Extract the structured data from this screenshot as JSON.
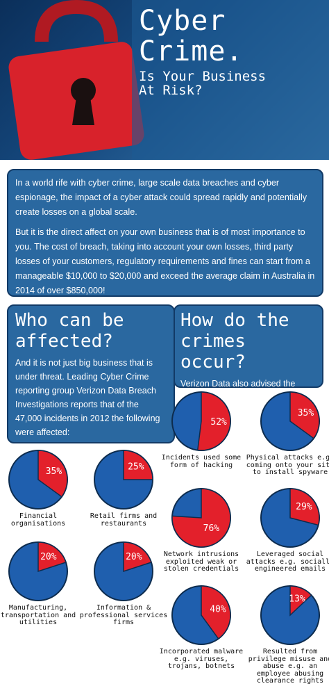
{
  "header": {
    "title": "Cyber Crime.",
    "subtitle": "Is Your Business At Risk?"
  },
  "intro": {
    "paragraphs": [
      "In a world rife with cyber crime, large scale data breaches and cyber espionage, the impact of a cyber attack could spread rapidly and potentially create losses on a global scale.",
      "But it is the direct affect on your own business that is of most importance to you. The cost of  breach, taking into account your own losses, third party losses of your customers, regulatory requirements and fines can start from a manageable $10,000 to $20,000 and exceed the average claim in Australia in 2014 of over $850,000!"
    ]
  },
  "who": {
    "heading": "Who can be affected?",
    "text": "And it is not just big business that is under threat. Leading Cyber Crime reporting group Verizon Data Breach Investigations reports that of the 47,000 incidents in 2012 the following were affected:",
    "pies": [
      {
        "value": 35,
        "value_label": "35%",
        "caption": "Financial organisations"
      },
      {
        "value": 25,
        "value_label": "25%",
        "caption": "Retail firms and restaurants"
      },
      {
        "value": 20,
        "value_label": "20%",
        "caption": "Manufacturing, transportation and utilities"
      },
      {
        "value": 20,
        "value_label": "20%",
        "caption": "Information & professional services firms"
      }
    ]
  },
  "how": {
    "heading": "How do the crimes occur?",
    "text": "Verizon Data also advised the following methods of access:",
    "pies": [
      {
        "value": 52,
        "value_label": "52%",
        "caption": "Incidents used some form of hacking"
      },
      {
        "value": 35,
        "value_label": "35%",
        "caption": "Physical attacks e.g. coming onto your site to install spyware"
      },
      {
        "value": 76,
        "value_label": "76%",
        "caption": "Network intrusions exploited weak or stolen credentials"
      },
      {
        "value": 29,
        "value_label": "29%",
        "caption": "Leveraged social attacks e.g. socially engineered emails"
      },
      {
        "value": 40,
        "value_label": "40%",
        "caption": "Incorporated malware e.g. viruses, trojans, botnets"
      },
      {
        "value": 13,
        "value_label": "13%",
        "caption": "Resulted from privilege misuse and abuse e.g. an employee abusing clearance rights"
      }
    ]
  }
}
